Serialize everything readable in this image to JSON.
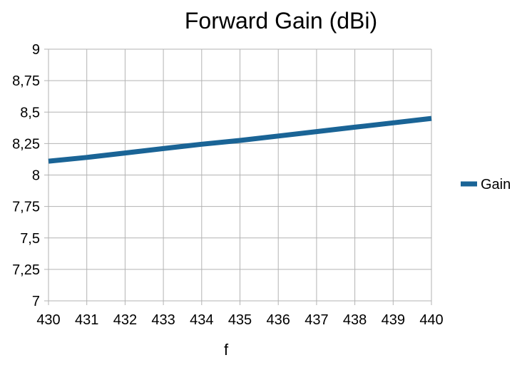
{
  "chart_data": {
    "type": "line",
    "title": "Forward Gain (dBi)",
    "xlabel": "f",
    "ylabel": "",
    "x": [
      430,
      431,
      432,
      433,
      434,
      435,
      436,
      437,
      438,
      439,
      440
    ],
    "x_tick_labels": [
      "430",
      "431",
      "432",
      "433",
      "434",
      "435",
      "436",
      "437",
      "438",
      "439",
      "440"
    ],
    "y_tick_labels": [
      "7",
      "7,25",
      "7,5",
      "7,75",
      "8",
      "8,25",
      "8,5",
      "8,75",
      "9"
    ],
    "y_ticks": [
      7,
      7.25,
      7.5,
      7.75,
      8,
      8.25,
      8.5,
      8.75,
      9
    ],
    "xlim": [
      430,
      440
    ],
    "ylim": [
      7,
      9
    ],
    "grid": true,
    "legend_position": "right",
    "series": [
      {
        "name": "Gain",
        "color": "#1a6496",
        "values": [
          8.11,
          8.14,
          8.175,
          8.21,
          8.245,
          8.275,
          8.31,
          8.345,
          8.38,
          8.415,
          8.45
        ]
      }
    ]
  }
}
